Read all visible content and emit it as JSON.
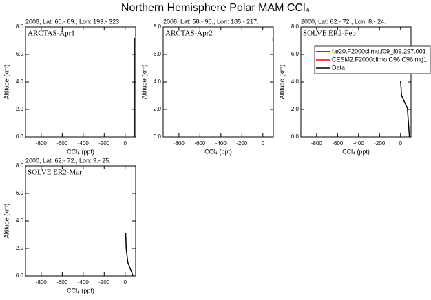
{
  "title": "Northern Hemisphere Polar MAM CCl₄",
  "chart_data": [
    {
      "type": "line",
      "subtitle": "2008, Lat: 60.- 89., Lon: 193.- 323.",
      "annotation": "ARCTAS-Apr1",
      "x_label": "CCl₄ (ppt)",
      "y_label": "Altitude (km)",
      "xlim": [
        -950,
        100
      ],
      "ylim": [
        0,
        8
      ],
      "xticks": [
        -800,
        -600,
        -400,
        -200,
        0
      ],
      "yticks": [
        {
          "value": 0,
          "label": "0.0"
        },
        {
          "value": 2,
          "label": "2.0"
        },
        {
          "value": 4,
          "label": "4.0"
        },
        {
          "value": 6,
          "label": "6.0"
        },
        {
          "value": 8,
          "label": "8.0"
        }
      ],
      "series": [
        {
          "name": "Data",
          "color": "#000000",
          "x": [
            88,
            88
          ],
          "y": [
            0,
            7.2
          ]
        }
      ]
    },
    {
      "type": "line",
      "subtitle": "2008, Lat: 58.- 90., Lon: 185.- 217.",
      "annotation": "ARCTAS-Apr2",
      "x_label": "CCl₄ (ppt)",
      "y_label": "Altitude (km)",
      "xlim": [
        -950,
        100
      ],
      "ylim": [
        0,
        8
      ],
      "xticks": [
        -800,
        -600,
        -400,
        -200,
        0
      ],
      "yticks": [
        {
          "value": 0,
          "label": "0.0"
        },
        {
          "value": 2,
          "label": "2.0"
        },
        {
          "value": 4,
          "label": "4.0"
        },
        {
          "value": 6,
          "label": "6.0"
        },
        {
          "value": 8,
          "label": "8.0"
        }
      ],
      "series": [
        {
          "name": "Data",
          "color": "#000000",
          "x": [
            97,
            97
          ],
          "y": [
            7.0,
            7.2
          ]
        }
      ]
    },
    {
      "type": "line",
      "subtitle": "2000, Lat: 62.- 72., Lon: 8.- 24.",
      "annotation": "SOLVE ER2-Feb",
      "x_label": "CCl₄ (ppt)",
      "y_label": "Altitude (km)",
      "xlim": [
        -950,
        100
      ],
      "ylim": [
        0,
        8
      ],
      "xticks": [
        -800,
        -600,
        -400,
        -200,
        0
      ],
      "yticks": [
        {
          "value": 0,
          "label": "0.0"
        },
        {
          "value": 2,
          "label": "2.0"
        },
        {
          "value": 4,
          "label": "4.0"
        },
        {
          "value": 6,
          "label": "6.0"
        },
        {
          "value": 8,
          "label": "8.0"
        }
      ],
      "legend": [
        {
          "name": "f.e20.F2000climo.f09_f09.297.001",
          "color": "#0000cc"
        },
        {
          "name": "CESM2.F2000climo.C96.C96.mg1",
          "color": "#ff0000"
        },
        {
          "name": "Data",
          "color": "#000000"
        }
      ],
      "series": [
        {
          "name": "Data",
          "color": "#000000",
          "x": [
            0,
            10,
            65,
            85
          ],
          "y": [
            4.1,
            3.0,
            2.1,
            0
          ]
        }
      ]
    },
    {
      "type": "line",
      "subtitle": "2000, Lat: 62.- 72., Lon: 9.- 25.",
      "annotation": "SOLVE ER2-Mar",
      "x_label": "CCl₄ (ppt)",
      "y_label": "Altitude (km)",
      "xlim": [
        -950,
        100
      ],
      "ylim": [
        0,
        8
      ],
      "xticks": [
        -800,
        -600,
        -400,
        -200,
        0
      ],
      "yticks": [
        {
          "value": 0,
          "label": "0.0"
        },
        {
          "value": 2,
          "label": "2.0"
        },
        {
          "value": 4,
          "label": "4.0"
        },
        {
          "value": 6,
          "label": "6.0"
        },
        {
          "value": 8,
          "label": "8.0"
        }
      ],
      "series": [
        {
          "name": "Data",
          "color": "#000000",
          "x": [
            5,
            10,
            25,
            75
          ],
          "y": [
            3.1,
            2.0,
            1.0,
            0
          ]
        }
      ]
    }
  ]
}
